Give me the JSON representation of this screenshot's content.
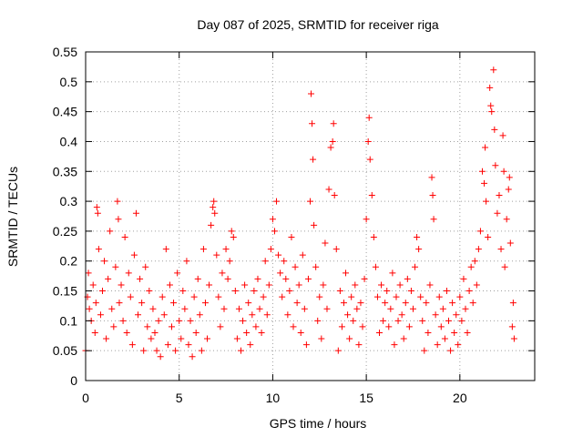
{
  "chart_data": {
    "type": "scatter",
    "title": "Day 087 of 2025, SRMTID for receiver riga",
    "xlabel": "GPS time / hours",
    "ylabel": "SRMTID / TECUs",
    "xlim": [
      0,
      24
    ],
    "ylim": [
      0,
      0.55
    ],
    "xticks": [
      0,
      5,
      10,
      15,
      20
    ],
    "yticks": [
      0,
      0.05,
      0.1,
      0.15,
      0.2,
      0.25,
      0.3,
      0.35,
      0.4,
      0.45,
      0.5,
      0.55
    ],
    "xtick_labels": [
      "0",
      "5",
      "10",
      "15",
      "20"
    ],
    "ytick_labels": [
      "0",
      "0.05",
      "0.1",
      "0.15",
      "0.2",
      "0.25",
      "0.3",
      "0.35",
      "0.4",
      "0.45",
      "0.5",
      "0.55"
    ],
    "grid": true,
    "marker": "+",
    "color": "#ff0000",
    "series": [
      {
        "name": "SRMTID",
        "points": [
          [
            0.0,
            0.05
          ],
          [
            0.1,
            0.14
          ],
          [
            0.15,
            0.18
          ],
          [
            0.2,
            0.12
          ],
          [
            0.3,
            0.1
          ],
          [
            0.4,
            0.16
          ],
          [
            0.5,
            0.08
          ],
          [
            0.55,
            0.13
          ],
          [
            0.6,
            0.29
          ],
          [
            0.65,
            0.28
          ],
          [
            0.7,
            0.22
          ],
          [
            0.8,
            0.11
          ],
          [
            0.9,
            0.15
          ],
          [
            1.0,
            0.2
          ],
          [
            1.1,
            0.07
          ],
          [
            1.2,
            0.17
          ],
          [
            1.3,
            0.25
          ],
          [
            1.4,
            0.12
          ],
          [
            1.5,
            0.09
          ],
          [
            1.6,
            0.19
          ],
          [
            1.7,
            0.3
          ],
          [
            1.75,
            0.27
          ],
          [
            1.8,
            0.13
          ],
          [
            1.9,
            0.16
          ],
          [
            2.0,
            0.1
          ],
          [
            2.1,
            0.24
          ],
          [
            2.2,
            0.08
          ],
          [
            2.3,
            0.18
          ],
          [
            2.4,
            0.14
          ],
          [
            2.5,
            0.06
          ],
          [
            2.6,
            0.21
          ],
          [
            2.7,
            0.28
          ],
          [
            2.8,
            0.11
          ],
          [
            2.9,
            0.17
          ],
          [
            3.0,
            0.13
          ],
          [
            3.1,
            0.05
          ],
          [
            3.2,
            0.19
          ],
          [
            3.3,
            0.09
          ],
          [
            3.4,
            0.15
          ],
          [
            3.5,
            0.07
          ],
          [
            3.6,
            0.12
          ],
          [
            3.7,
            0.08
          ],
          [
            3.8,
            0.05
          ],
          [
            3.9,
            0.1
          ],
          [
            4.0,
            0.04
          ],
          [
            4.1,
            0.14
          ],
          [
            4.2,
            0.11
          ],
          [
            4.3,
            0.22
          ],
          [
            4.4,
            0.06
          ],
          [
            4.5,
            0.16
          ],
          [
            4.6,
            0.09
          ],
          [
            4.7,
            0.13
          ],
          [
            4.8,
            0.05
          ],
          [
            4.9,
            0.18
          ],
          [
            5.0,
            0.1
          ],
          [
            5.1,
            0.07
          ],
          [
            5.2,
            0.15
          ],
          [
            5.3,
            0.12
          ],
          [
            5.4,
            0.2
          ],
          [
            5.5,
            0.06
          ],
          [
            5.6,
            0.1
          ],
          [
            5.7,
            0.04
          ],
          [
            5.8,
            0.14
          ],
          [
            5.9,
            0.08
          ],
          [
            6.0,
            0.17
          ],
          [
            6.1,
            0.11
          ],
          [
            6.2,
            0.05
          ],
          [
            6.3,
            0.22
          ],
          [
            6.4,
            0.13
          ],
          [
            6.5,
            0.07
          ],
          [
            6.6,
            0.16
          ],
          [
            6.7,
            0.26
          ],
          [
            6.8,
            0.29
          ],
          [
            6.85,
            0.3
          ],
          [
            6.9,
            0.28
          ],
          [
            7.0,
            0.21
          ],
          [
            7.1,
            0.14
          ],
          [
            7.2,
            0.09
          ],
          [
            7.3,
            0.18
          ],
          [
            7.4,
            0.12
          ],
          [
            7.5,
            0.22
          ],
          [
            7.6,
            0.17
          ],
          [
            7.7,
            0.2
          ],
          [
            7.8,
            0.25
          ],
          [
            7.9,
            0.24
          ],
          [
            8.0,
            0.15
          ],
          [
            8.1,
            0.07
          ],
          [
            8.2,
            0.12
          ],
          [
            8.3,
            0.05
          ],
          [
            8.4,
            0.1
          ],
          [
            8.5,
            0.16
          ],
          [
            8.6,
            0.08
          ],
          [
            8.7,
            0.13
          ],
          [
            8.8,
            0.06
          ],
          [
            8.9,
            0.11
          ],
          [
            9.0,
            0.15
          ],
          [
            9.1,
            0.09
          ],
          [
            9.2,
            0.17
          ],
          [
            9.3,
            0.12
          ],
          [
            9.4,
            0.08
          ],
          [
            9.5,
            0.14
          ],
          [
            9.6,
            0.2
          ],
          [
            9.7,
            0.11
          ],
          [
            9.8,
            0.16
          ],
          [
            9.9,
            0.22
          ],
          [
            10.0,
            0.27
          ],
          [
            10.1,
            0.25
          ],
          [
            10.2,
            0.3
          ],
          [
            10.3,
            0.21
          ],
          [
            10.4,
            0.18
          ],
          [
            10.5,
            0.14
          ],
          [
            10.6,
            0.2
          ],
          [
            10.7,
            0.17
          ],
          [
            10.8,
            0.11
          ],
          [
            10.9,
            0.15
          ],
          [
            11.0,
            0.24
          ],
          [
            11.1,
            0.09
          ],
          [
            11.2,
            0.19
          ],
          [
            11.3,
            0.13
          ],
          [
            11.4,
            0.16
          ],
          [
            11.5,
            0.08
          ],
          [
            11.6,
            0.21
          ],
          [
            11.7,
            0.12
          ],
          [
            11.8,
            0.06
          ],
          [
            11.9,
            0.17
          ],
          [
            12.0,
            0.3
          ],
          [
            12.05,
            0.48
          ],
          [
            12.1,
            0.43
          ],
          [
            12.15,
            0.37
          ],
          [
            12.2,
            0.26
          ],
          [
            12.3,
            0.19
          ],
          [
            12.4,
            0.1
          ],
          [
            12.5,
            0.14
          ],
          [
            12.6,
            0.07
          ],
          [
            12.7,
            0.16
          ],
          [
            12.8,
            0.23
          ],
          [
            12.9,
            0.12
          ],
          [
            13.0,
            0.32
          ],
          [
            13.1,
            0.39
          ],
          [
            13.2,
            0.4
          ],
          [
            13.25,
            0.43
          ],
          [
            13.3,
            0.31
          ],
          [
            13.4,
            0.22
          ],
          [
            13.5,
            0.05
          ],
          [
            13.6,
            0.15
          ],
          [
            13.7,
            0.09
          ],
          [
            13.8,
            0.13
          ],
          [
            13.9,
            0.18
          ],
          [
            14.0,
            0.11
          ],
          [
            14.1,
            0.07
          ],
          [
            14.2,
            0.14
          ],
          [
            14.3,
            0.1
          ],
          [
            14.4,
            0.16
          ],
          [
            14.5,
            0.12
          ],
          [
            14.6,
            0.06
          ],
          [
            14.7,
            0.13
          ],
          [
            14.8,
            0.09
          ],
          [
            14.9,
            0.17
          ],
          [
            15.0,
            0.27
          ],
          [
            15.1,
            0.4
          ],
          [
            15.15,
            0.44
          ],
          [
            15.2,
            0.37
          ],
          [
            15.3,
            0.31
          ],
          [
            15.4,
            0.24
          ],
          [
            15.5,
            0.19
          ],
          [
            15.6,
            0.14
          ],
          [
            15.7,
            0.08
          ],
          [
            15.8,
            0.16
          ],
          [
            15.9,
            0.1
          ],
          [
            16.0,
            0.13
          ],
          [
            16.1,
            0.15
          ],
          [
            16.2,
            0.09
          ],
          [
            16.3,
            0.12
          ],
          [
            16.4,
            0.18
          ],
          [
            16.5,
            0.06
          ],
          [
            16.6,
            0.14
          ],
          [
            16.7,
            0.1
          ],
          [
            16.8,
            0.16
          ],
          [
            16.9,
            0.11
          ],
          [
            17.0,
            0.07
          ],
          [
            17.1,
            0.13
          ],
          [
            17.2,
            0.17
          ],
          [
            17.3,
            0.09
          ],
          [
            17.4,
            0.15
          ],
          [
            17.5,
            0.12
          ],
          [
            17.6,
            0.19
          ],
          [
            17.7,
            0.24
          ],
          [
            17.8,
            0.22
          ],
          [
            17.9,
            0.14
          ],
          [
            18.0,
            0.1
          ],
          [
            18.1,
            0.05
          ],
          [
            18.2,
            0.13
          ],
          [
            18.3,
            0.08
          ],
          [
            18.4,
            0.16
          ],
          [
            18.5,
            0.34
          ],
          [
            18.55,
            0.31
          ],
          [
            18.6,
            0.27
          ],
          [
            18.7,
            0.11
          ],
          [
            18.8,
            0.06
          ],
          [
            18.9,
            0.14
          ],
          [
            19.0,
            0.09
          ],
          [
            19.1,
            0.12
          ],
          [
            19.2,
            0.07
          ],
          [
            19.3,
            0.15
          ],
          [
            19.4,
            0.1
          ],
          [
            19.5,
            0.05
          ],
          [
            19.6,
            0.13
          ],
          [
            19.7,
            0.08
          ],
          [
            19.8,
            0.11
          ],
          [
            19.9,
            0.06
          ],
          [
            20.0,
            0.14
          ],
          [
            20.1,
            0.1
          ],
          [
            20.2,
            0.17
          ],
          [
            20.3,
            0.12
          ],
          [
            20.4,
            0.08
          ],
          [
            20.5,
            0.15
          ],
          [
            20.6,
            0.19
          ],
          [
            20.7,
            0.13
          ],
          [
            20.8,
            0.2
          ],
          [
            20.9,
            0.16
          ],
          [
            21.0,
            0.22
          ],
          [
            21.1,
            0.25
          ],
          [
            21.2,
            0.35
          ],
          [
            21.3,
            0.33
          ],
          [
            21.35,
            0.39
          ],
          [
            21.4,
            0.3
          ],
          [
            21.5,
            0.24
          ],
          [
            21.6,
            0.49
          ],
          [
            21.65,
            0.46
          ],
          [
            21.7,
            0.45
          ],
          [
            21.8,
            0.52
          ],
          [
            21.85,
            0.42
          ],
          [
            21.9,
            0.36
          ],
          [
            22.0,
            0.28
          ],
          [
            22.1,
            0.31
          ],
          [
            22.2,
            0.22
          ],
          [
            22.3,
            0.41
          ],
          [
            22.35,
            0.35
          ],
          [
            22.4,
            0.19
          ],
          [
            22.5,
            0.27
          ],
          [
            22.6,
            0.32
          ],
          [
            22.65,
            0.34
          ],
          [
            22.7,
            0.23
          ],
          [
            22.8,
            0.09
          ],
          [
            22.85,
            0.13
          ],
          [
            22.9,
            0.07
          ]
        ]
      }
    ]
  }
}
